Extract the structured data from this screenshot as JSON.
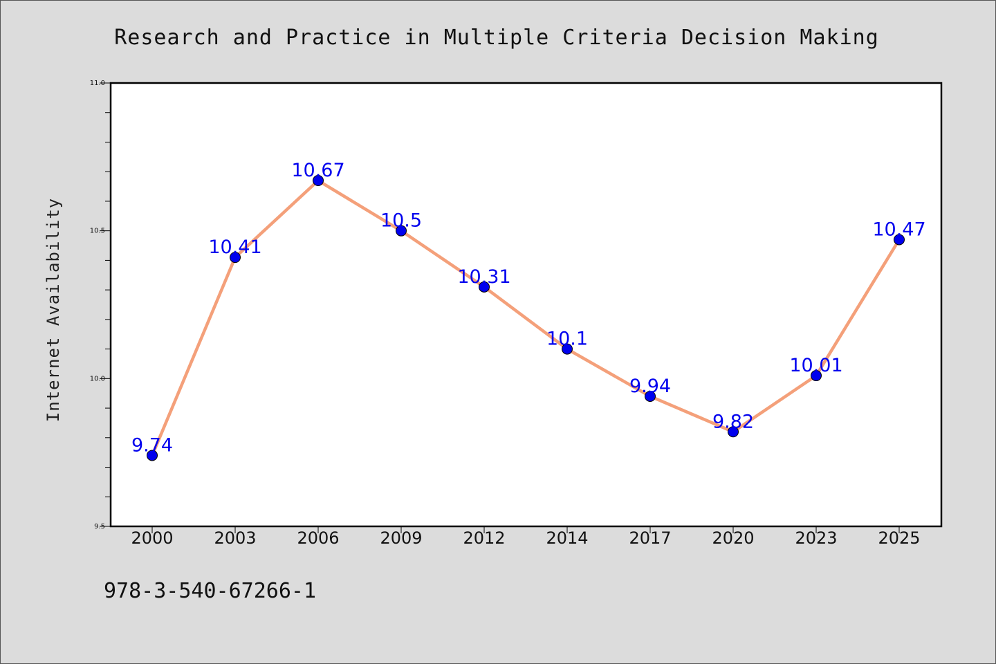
{
  "chart_data": {
    "type": "line",
    "title": "Research and Practice in Multiple Criteria Decision Making",
    "xlabel": "",
    "ylabel": "Internet Availability",
    "categories": [
      "2000",
      "2003",
      "2006",
      "2009",
      "2012",
      "2014",
      "2017",
      "2020",
      "2023",
      "2025"
    ],
    "values": [
      9.74,
      10.41,
      10.67,
      10.5,
      10.31,
      10.1,
      9.94,
      9.82,
      10.01,
      10.47
    ],
    "data_labels": [
      "9.74",
      "10.41",
      "10.67",
      "10.5",
      "10.31",
      "10.1",
      "9.94",
      "9.82",
      "10.01",
      "10.47"
    ],
    "ylim": [
      9.5,
      11.0
    ],
    "yticks": [
      "9.5",
      "10.0",
      "10.5",
      "11.0"
    ],
    "grid": false,
    "legend": "none",
    "line_color": "#f4a07a",
    "marker_color": "#0000ee",
    "label_color": "#0000ee"
  },
  "footer": {
    "isbn": "978-3-540-67266-1"
  }
}
